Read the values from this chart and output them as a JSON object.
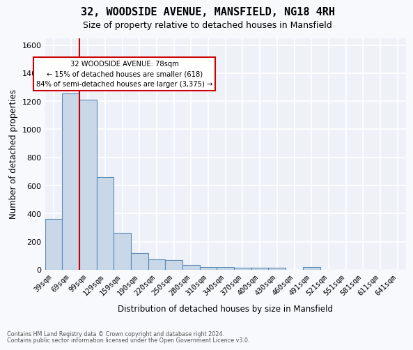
{
  "title": "32, WOODSIDE AVENUE, MANSFIELD, NG18 4RH",
  "subtitle": "Size of property relative to detached houses in Mansfield",
  "xlabel": "Distribution of detached houses by size in Mansfield",
  "ylabel": "Number of detached properties",
  "footnote1": "Contains HM Land Registry data © Crown copyright and database right 2024.",
  "footnote2": "Contains public sector information licensed under the Open Government Licence v3.0.",
  "annotation_title": "32 WOODSIDE AVENUE: 78sqm",
  "annotation_line1": "← 15% of detached houses are smaller (618)",
  "annotation_line2": "84% of semi-detached houses are larger (3,375) →",
  "property_sqm": 78,
  "red_line_x": 1.5,
  "categories": [
    "39sqm",
    "69sqm",
    "99sqm",
    "129sqm",
    "159sqm",
    "190sqm",
    "220sqm",
    "250sqm",
    "280sqm",
    "310sqm",
    "340sqm",
    "370sqm",
    "400sqm",
    "430sqm",
    "460sqm",
    "491sqm",
    "521sqm",
    "551sqm",
    "581sqm",
    "611sqm",
    "641sqm"
  ],
  "bar_heights": [
    360,
    1255,
    1210,
    660,
    265,
    120,
    75,
    70,
    35,
    22,
    18,
    15,
    14,
    13,
    0,
    18,
    0,
    0,
    0,
    0,
    0
  ],
  "bar_color": "#c8d8e8",
  "bar_edge_color": "#5a8ab5",
  "background_color": "#eef2f8",
  "grid_color": "#ffffff",
  "red_line_color": "#cc0000",
  "ylim": [
    0,
    1650
  ],
  "yticks": [
    0,
    200,
    400,
    600,
    800,
    1000,
    1200,
    1400,
    1600
  ],
  "annotation_box_color": "#ffffff",
  "annotation_box_edge": "#cc0000"
}
